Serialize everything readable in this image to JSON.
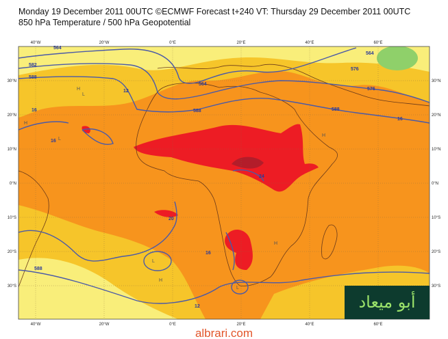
{
  "header": {
    "title": "Monday 19 December 2011 00UTC ©ECMWF Forecast t+240 VT: Thursday 29 December 2011 00UTC",
    "subtitle": "850 hPa Temperature / 500 hPa Geopotential"
  },
  "map": {
    "lon_labels": [
      "40°W",
      "20°W",
      "0°E",
      "20°E",
      "40°E",
      "60°E"
    ],
    "lat_labels": [
      "30°N",
      "20°N",
      "10°N",
      "0°N",
      "10°S",
      "20°S",
      "30°S"
    ],
    "contour_labels": [
      "564",
      "564",
      "582",
      "588",
      "576",
      "588",
      "12",
      "16",
      "16",
      "16",
      "24",
      "20",
      "12",
      "16",
      "588",
      "576",
      "564",
      "588"
    ],
    "markers": [
      "H",
      "L"
    ]
  },
  "logo": "أبو ميعاد",
  "footer": "albrari.com"
}
